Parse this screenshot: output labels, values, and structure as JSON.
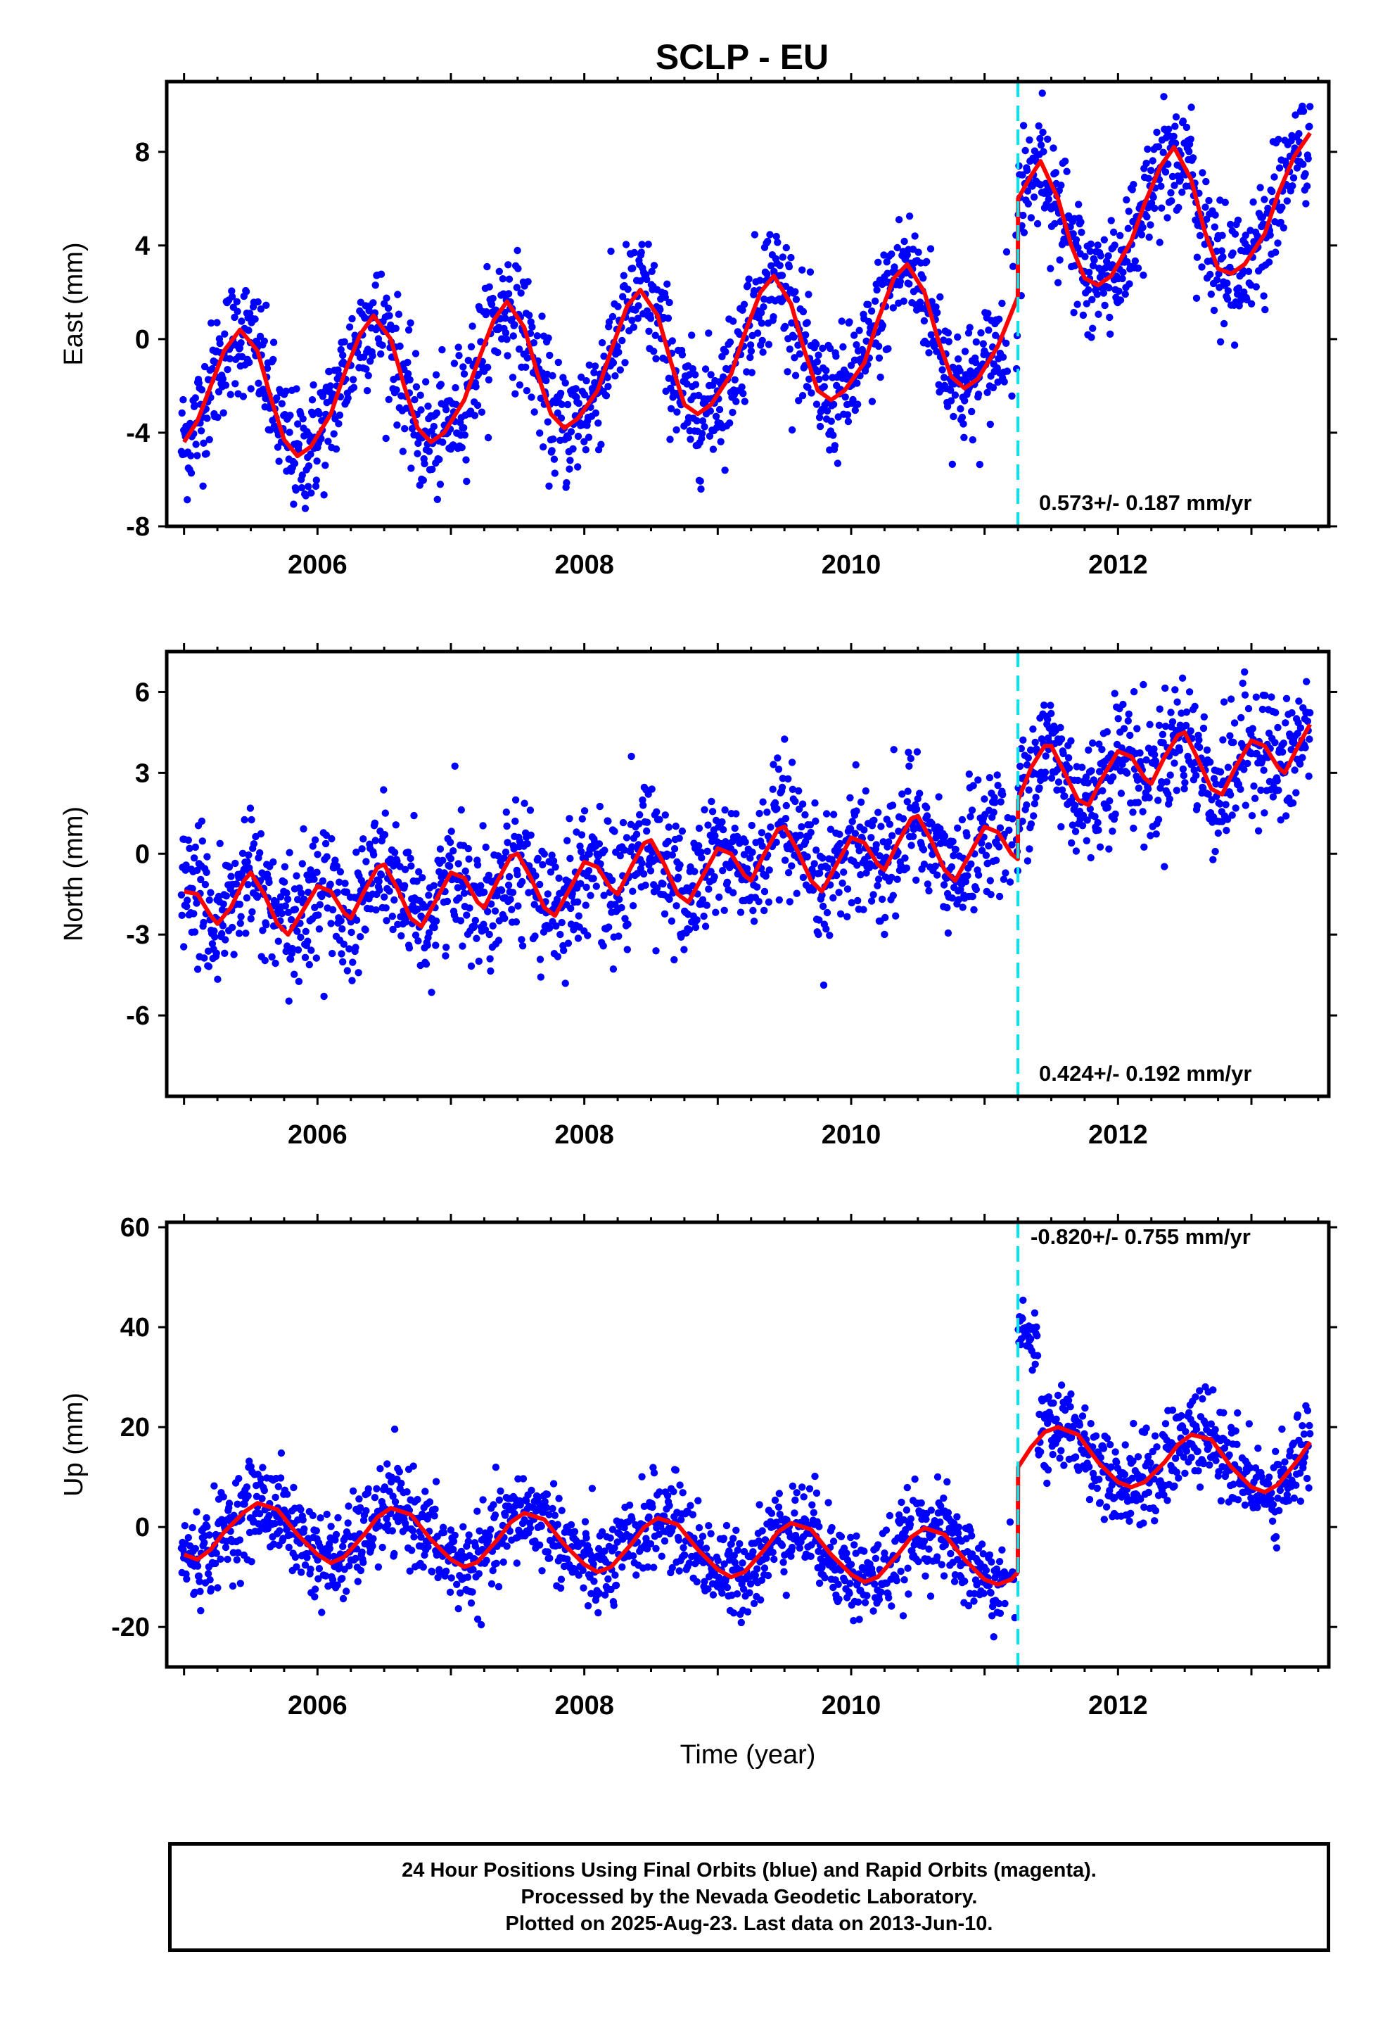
{
  "title": "SCLP - EU",
  "caption": {
    "lines": [
      "24 Hour Positions Using Final Orbits (blue) and Rapid Orbits (magenta).",
      "Processed by the Nevada Geodetic Laboratory.",
      "Plotted on 2025-Aug-23. Last data on 2013-Jun-10."
    ]
  },
  "colors": {
    "points": "#0000ff",
    "fit": "#ff0000",
    "offset_line": "#00e5ee",
    "frame": "#000000"
  },
  "chart_data": [
    {
      "type": "scatter",
      "ylabel": "East (mm)",
      "xlabel": "",
      "xlim": [
        2004.87,
        2013.58
      ],
      "ylim": [
        -8,
        11
      ],
      "yticks": [
        -8,
        -4,
        0,
        4,
        8
      ],
      "xticks": [
        2006,
        2008,
        2010,
        2012
      ],
      "offset_at": 2011.25,
      "rate_label": "0.573+/- 0.187 mm/yr",
      "fit_curve": [
        [
          2005.0,
          -4.4
        ],
        [
          2005.1,
          -3.5
        ],
        [
          2005.2,
          -2.0
        ],
        [
          2005.3,
          -0.5
        ],
        [
          2005.42,
          0.4
        ],
        [
          2005.55,
          -0.5
        ],
        [
          2005.65,
          -2.5
        ],
        [
          2005.75,
          -4.3
        ],
        [
          2005.85,
          -5.0
        ],
        [
          2005.95,
          -4.6
        ],
        [
          2006.1,
          -3.2
        ],
        [
          2006.2,
          -1.5
        ],
        [
          2006.32,
          0.2
        ],
        [
          2006.42,
          1.0
        ],
        [
          2006.55,
          0.0
        ],
        [
          2006.65,
          -2.0
        ],
        [
          2006.75,
          -3.8
        ],
        [
          2006.85,
          -4.4
        ],
        [
          2006.95,
          -4.0
        ],
        [
          2007.1,
          -2.6
        ],
        [
          2007.2,
          -1.0
        ],
        [
          2007.32,
          0.8
        ],
        [
          2007.42,
          1.6
        ],
        [
          2007.55,
          0.5
        ],
        [
          2007.65,
          -1.5
        ],
        [
          2007.75,
          -3.2
        ],
        [
          2007.85,
          -3.8
        ],
        [
          2007.95,
          -3.4
        ],
        [
          2008.1,
          -2.2
        ],
        [
          2008.2,
          -0.5
        ],
        [
          2008.32,
          1.4
        ],
        [
          2008.42,
          2.1
        ],
        [
          2008.55,
          1.0
        ],
        [
          2008.65,
          -1.0
        ],
        [
          2008.75,
          -2.8
        ],
        [
          2008.85,
          -3.2
        ],
        [
          2008.95,
          -2.8
        ],
        [
          2009.1,
          -1.5
        ],
        [
          2009.2,
          0.2
        ],
        [
          2009.32,
          2.0
        ],
        [
          2009.42,
          2.7
        ],
        [
          2009.55,
          1.5
        ],
        [
          2009.65,
          -0.5
        ],
        [
          2009.75,
          -2.2
        ],
        [
          2009.85,
          -2.6
        ],
        [
          2009.95,
          -2.2
        ],
        [
          2010.1,
          -1.0
        ],
        [
          2010.2,
          0.8
        ],
        [
          2010.32,
          2.6
        ],
        [
          2010.42,
          3.2
        ],
        [
          2010.55,
          2.0
        ],
        [
          2010.65,
          0.0
        ],
        [
          2010.75,
          -1.6
        ],
        [
          2010.85,
          -2.1
        ],
        [
          2010.95,
          -1.7
        ],
        [
          2011.1,
          -0.3
        ],
        [
          2011.249,
          1.8
        ],
        [
          2011.251,
          6.0
        ],
        [
          2011.35,
          7.0
        ],
        [
          2011.42,
          7.6
        ],
        [
          2011.55,
          6.0
        ],
        [
          2011.65,
          4.0
        ],
        [
          2011.75,
          2.6
        ],
        [
          2011.85,
          2.3
        ],
        [
          2011.95,
          2.7
        ],
        [
          2012.1,
          4.2
        ],
        [
          2012.2,
          5.8
        ],
        [
          2012.32,
          7.4
        ],
        [
          2012.42,
          8.2
        ],
        [
          2012.55,
          6.8
        ],
        [
          2012.65,
          4.6
        ],
        [
          2012.75,
          3.0
        ],
        [
          2012.85,
          2.8
        ],
        [
          2012.95,
          3.2
        ],
        [
          2013.1,
          4.5
        ],
        [
          2013.2,
          6.2
        ],
        [
          2013.32,
          7.8
        ],
        [
          2013.44,
          8.8
        ]
      ]
    },
    {
      "type": "scatter",
      "ylabel": "North (mm)",
      "xlabel": "",
      "xlim": [
        2004.87,
        2013.58
      ],
      "ylim": [
        -9,
        7.5
      ],
      "yticks": [
        -6,
        -3,
        0,
        3,
        6
      ],
      "xticks": [
        2006,
        2008,
        2010,
        2012
      ],
      "offset_at": 2011.25,
      "rate_label": "0.424+/- 0.192 mm/yr",
      "fit_curve": [
        [
          2005.0,
          -1.4
        ],
        [
          2005.1,
          -1.5
        ],
        [
          2005.2,
          -2.3
        ],
        [
          2005.25,
          -2.6
        ],
        [
          2005.35,
          -2.0
        ],
        [
          2005.45,
          -1.0
        ],
        [
          2005.5,
          -0.7
        ],
        [
          2005.6,
          -1.5
        ],
        [
          2005.7,
          -2.6
        ],
        [
          2005.78,
          -3.0
        ],
        [
          2005.88,
          -2.2
        ],
        [
          2006.0,
          -1.2
        ],
        [
          2006.1,
          -1.4
        ],
        [
          2006.2,
          -2.2
        ],
        [
          2006.25,
          -2.4
        ],
        [
          2006.35,
          -1.4
        ],
        [
          2006.45,
          -0.5
        ],
        [
          2006.5,
          -0.4
        ],
        [
          2006.6,
          -1.3
        ],
        [
          2006.7,
          -2.4
        ],
        [
          2006.78,
          -2.7
        ],
        [
          2006.88,
          -1.8
        ],
        [
          2007.0,
          -0.7
        ],
        [
          2007.1,
          -0.9
        ],
        [
          2007.2,
          -1.8
        ],
        [
          2007.25,
          -2.0
        ],
        [
          2007.35,
          -1.0
        ],
        [
          2007.45,
          -0.1
        ],
        [
          2007.5,
          0.0
        ],
        [
          2007.6,
          -0.9
        ],
        [
          2007.7,
          -2.0
        ],
        [
          2007.78,
          -2.3
        ],
        [
          2007.88,
          -1.4
        ],
        [
          2008.0,
          -0.3
        ],
        [
          2008.1,
          -0.5
        ],
        [
          2008.2,
          -1.3
        ],
        [
          2008.25,
          -1.5
        ],
        [
          2008.35,
          -0.5
        ],
        [
          2008.45,
          0.4
        ],
        [
          2008.5,
          0.5
        ],
        [
          2008.6,
          -0.4
        ],
        [
          2008.7,
          -1.5
        ],
        [
          2008.78,
          -1.8
        ],
        [
          2008.88,
          -0.9
        ],
        [
          2009.0,
          0.2
        ],
        [
          2009.1,
          0.0
        ],
        [
          2009.2,
          -0.8
        ],
        [
          2009.25,
          -1.0
        ],
        [
          2009.35,
          0.0
        ],
        [
          2009.45,
          0.9
        ],
        [
          2009.5,
          1.0
        ],
        [
          2009.6,
          0.1
        ],
        [
          2009.7,
          -1.0
        ],
        [
          2009.78,
          -1.4
        ],
        [
          2009.88,
          -0.5
        ],
        [
          2010.0,
          0.6
        ],
        [
          2010.1,
          0.4
        ],
        [
          2010.2,
          -0.4
        ],
        [
          2010.25,
          -0.6
        ],
        [
          2010.35,
          0.4
        ],
        [
          2010.45,
          1.3
        ],
        [
          2010.5,
          1.4
        ],
        [
          2010.6,
          0.5
        ],
        [
          2010.7,
          -0.6
        ],
        [
          2010.78,
          -1.0
        ],
        [
          2010.88,
          -0.1
        ],
        [
          2011.0,
          1.0
        ],
        [
          2011.1,
          0.8
        ],
        [
          2011.2,
          0.0
        ],
        [
          2011.249,
          -0.2
        ],
        [
          2011.251,
          2.0
        ],
        [
          2011.35,
          3.2
        ],
        [
          2011.45,
          4.0
        ],
        [
          2011.5,
          4.0
        ],
        [
          2011.6,
          3.0
        ],
        [
          2011.7,
          2.0
        ],
        [
          2011.78,
          1.8
        ],
        [
          2011.88,
          2.8
        ],
        [
          2012.0,
          3.8
        ],
        [
          2012.1,
          3.6
        ],
        [
          2012.2,
          2.8
        ],
        [
          2012.25,
          2.6
        ],
        [
          2012.35,
          3.6
        ],
        [
          2012.45,
          4.4
        ],
        [
          2012.5,
          4.5
        ],
        [
          2012.6,
          3.5
        ],
        [
          2012.7,
          2.4
        ],
        [
          2012.78,
          2.2
        ],
        [
          2012.88,
          3.2
        ],
        [
          2013.0,
          4.2
        ],
        [
          2013.1,
          4.0
        ],
        [
          2013.2,
          3.2
        ],
        [
          2013.25,
          3.0
        ],
        [
          2013.35,
          4.0
        ],
        [
          2013.44,
          4.8
        ]
      ]
    },
    {
      "type": "scatter",
      "ylabel": "Up (mm)",
      "xlabel": "Time (year)",
      "xlim": [
        2004.87,
        2013.58
      ],
      "ylim": [
        -28,
        61
      ],
      "yticks": [
        -20,
        0,
        20,
        40,
        60
      ],
      "xticks": [
        2006,
        2008,
        2010,
        2012
      ],
      "offset_at": 2011.25,
      "rate_label": "-0.820+/- 0.755 mm/yr",
      "fit_curve": [
        [
          2005.0,
          -5.5
        ],
        [
          2005.1,
          -6.5
        ],
        [
          2005.2,
          -4.5
        ],
        [
          2005.3,
          -1.0
        ],
        [
          2005.45,
          3.0
        ],
        [
          2005.55,
          4.8
        ],
        [
          2005.7,
          3.5
        ],
        [
          2005.85,
          -1.5
        ],
        [
          2006.0,
          -5.5
        ],
        [
          2006.1,
          -7.2
        ],
        [
          2006.2,
          -6.0
        ],
        [
          2006.35,
          -1.5
        ],
        [
          2006.45,
          2.0
        ],
        [
          2006.55,
          3.8
        ],
        [
          2006.7,
          2.5
        ],
        [
          2006.85,
          -2.5
        ],
        [
          2007.0,
          -6.5
        ],
        [
          2007.1,
          -8.0
        ],
        [
          2007.2,
          -7.0
        ],
        [
          2007.35,
          -2.5
        ],
        [
          2007.45,
          1.0
        ],
        [
          2007.55,
          2.8
        ],
        [
          2007.7,
          1.5
        ],
        [
          2007.85,
          -3.5
        ],
        [
          2008.0,
          -7.5
        ],
        [
          2008.1,
          -9.0
        ],
        [
          2008.2,
          -8.0
        ],
        [
          2008.35,
          -3.5
        ],
        [
          2008.45,
          0.0
        ],
        [
          2008.55,
          1.8
        ],
        [
          2008.7,
          0.5
        ],
        [
          2008.85,
          -4.5
        ],
        [
          2009.0,
          -8.5
        ],
        [
          2009.1,
          -10.0
        ],
        [
          2009.2,
          -9.0
        ],
        [
          2009.35,
          -4.5
        ],
        [
          2009.45,
          -1.0
        ],
        [
          2009.55,
          0.8
        ],
        [
          2009.7,
          -0.5
        ],
        [
          2009.85,
          -5.5
        ],
        [
          2010.0,
          -9.5
        ],
        [
          2010.1,
          -11.0
        ],
        [
          2010.2,
          -10.0
        ],
        [
          2010.35,
          -5.5
        ],
        [
          2010.45,
          -2.0
        ],
        [
          2010.55,
          -0.2
        ],
        [
          2010.7,
          -1.5
        ],
        [
          2010.85,
          -6.5
        ],
        [
          2011.0,
          -10.5
        ],
        [
          2011.1,
          -11.5
        ],
        [
          2011.2,
          -10.5
        ],
        [
          2011.249,
          -9.0
        ],
        [
          2011.251,
          12.0
        ],
        [
          2011.35,
          16.0
        ],
        [
          2011.45,
          19.0
        ],
        [
          2011.55,
          20.0
        ],
        [
          2011.7,
          18.5
        ],
        [
          2011.85,
          13.0
        ],
        [
          2012.0,
          9.0
        ],
        [
          2012.1,
          8.0
        ],
        [
          2012.2,
          9.0
        ],
        [
          2012.35,
          13.0
        ],
        [
          2012.45,
          16.5
        ],
        [
          2012.55,
          18.5
        ],
        [
          2012.7,
          17.5
        ],
        [
          2012.85,
          12.0
        ],
        [
          2013.0,
          8.0
        ],
        [
          2013.1,
          7.0
        ],
        [
          2013.2,
          8.5
        ],
        [
          2013.35,
          13.5
        ],
        [
          2013.44,
          17.0
        ]
      ]
    }
  ]
}
